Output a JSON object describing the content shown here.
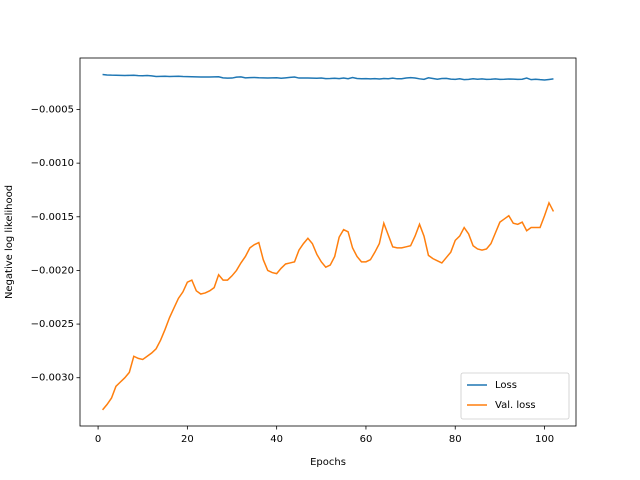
{
  "chart_data": {
    "type": "line",
    "xlabel": "Epochs",
    "ylabel": "Negative log likelihood",
    "x": [
      1,
      2,
      3,
      4,
      5,
      6,
      7,
      8,
      9,
      10,
      11,
      12,
      13,
      14,
      15,
      16,
      17,
      18,
      19,
      20,
      21,
      22,
      23,
      24,
      25,
      26,
      27,
      28,
      29,
      30,
      31,
      32,
      33,
      34,
      35,
      36,
      37,
      38,
      39,
      40,
      41,
      42,
      43,
      44,
      45,
      46,
      47,
      48,
      49,
      50,
      51,
      52,
      53,
      54,
      55,
      56,
      57,
      58,
      59,
      60,
      61,
      62,
      63,
      64,
      65,
      66,
      67,
      68,
      69,
      70,
      71,
      72,
      73,
      74,
      75,
      76,
      77,
      78,
      79,
      80,
      81,
      82,
      83,
      84,
      85,
      86,
      87,
      88,
      89,
      90,
      91,
      92,
      93,
      94,
      95,
      96,
      97,
      98,
      99,
      100,
      101,
      102
    ],
    "series": [
      {
        "name": "Loss",
        "color": "#1f77b4",
        "values": [
          -0.000174,
          -0.000178,
          -0.00018,
          -0.000181,
          -0.000182,
          -0.000183,
          -0.000182,
          -0.000181,
          -0.000184,
          -0.000186,
          -0.000183,
          -0.000187,
          -0.000192,
          -0.000191,
          -0.00019,
          -0.000192,
          -0.000191,
          -0.00019,
          -0.000193,
          -0.000194,
          -0.000195,
          -0.000196,
          -0.000197,
          -0.000197,
          -0.000197,
          -0.000196,
          -0.000195,
          -0.000205,
          -0.000208,
          -0.000207,
          -0.000198,
          -0.000196,
          -0.000205,
          -0.000203,
          -0.000202,
          -0.000204,
          -0.000205,
          -0.000206,
          -0.000205,
          -0.000204,
          -0.000209,
          -0.000205,
          -0.000201,
          -0.000197,
          -0.000207,
          -0.000206,
          -0.000207,
          -0.000208,
          -0.000209,
          -0.000207,
          -0.000212,
          -0.000211,
          -0.000209,
          -0.000212,
          -0.000207,
          -0.000213,
          -0.000202,
          -0.000211,
          -0.000214,
          -0.000212,
          -0.000215,
          -0.000212,
          -0.000216,
          -0.000211,
          -0.000213,
          -0.000208,
          -0.000214,
          -0.000213,
          -0.000206,
          -0.000203,
          -0.000206,
          -0.000214,
          -0.000219,
          -0.000204,
          -0.000211,
          -0.000218,
          -0.000211,
          -0.00021,
          -0.000217,
          -0.000219,
          -0.000213,
          -0.000221,
          -0.000219,
          -0.000213,
          -0.000218,
          -0.000215,
          -0.000219,
          -0.000218,
          -0.000215,
          -0.000219,
          -0.000218,
          -0.000216,
          -0.000217,
          -0.000219,
          -0.000218,
          -0.000207,
          -0.000222,
          -0.000218,
          -0.000222,
          -0.000225,
          -0.00022,
          -0.000215
        ]
      },
      {
        "name": "Val. loss",
        "color": "#ff7f0e",
        "values": [
          -0.0033,
          -0.00325,
          -0.00319,
          -0.00308,
          -0.00304,
          -0.003,
          -0.00295,
          -0.0028,
          -0.00282,
          -0.00283,
          -0.0028,
          -0.00277,
          -0.00273,
          -0.00265,
          -0.00255,
          -0.00244,
          -0.00235,
          -0.00226,
          -0.0022,
          -0.00211,
          -0.00209,
          -0.00219,
          -0.00222,
          -0.00221,
          -0.00219,
          -0.00216,
          -0.00204,
          -0.00209,
          -0.00209,
          -0.00205,
          -0.002,
          -0.00193,
          -0.00187,
          -0.00179,
          -0.00176,
          -0.00174,
          -0.0019,
          -0.002,
          -0.00202,
          -0.00203,
          -0.00198,
          -0.00194,
          -0.00193,
          -0.00192,
          -0.00181,
          -0.00175,
          -0.0017,
          -0.00175,
          -0.00185,
          -0.00192,
          -0.00197,
          -0.00195,
          -0.00187,
          -0.00169,
          -0.00162,
          -0.00164,
          -0.00179,
          -0.00187,
          -0.00192,
          -0.00192,
          -0.0019,
          -0.00183,
          -0.00175,
          -0.00156,
          -0.00167,
          -0.00178,
          -0.00179,
          -0.00179,
          -0.00178,
          -0.00177,
          -0.00168,
          -0.00157,
          -0.00168,
          -0.00186,
          -0.00189,
          -0.00191,
          -0.00193,
          -0.00188,
          -0.00183,
          -0.00172,
          -0.00168,
          -0.0016,
          -0.00166,
          -0.00177,
          -0.0018,
          -0.00181,
          -0.0018,
          -0.00175,
          -0.00165,
          -0.00155,
          -0.00152,
          -0.00149,
          -0.00156,
          -0.00157,
          -0.00155,
          -0.00163,
          -0.0016,
          -0.0016,
          -0.0016,
          -0.00149,
          -0.00137,
          -0.00145
        ]
      }
    ],
    "xlim": [
      -4.05,
      107.05
    ],
    "xticks": [
      0,
      20,
      40,
      60,
      80,
      100
    ],
    "ylim": [
      -0.00345,
      -2e-05
    ],
    "yticks": [
      {
        "value": -0.003,
        "label": "−0.0030"
      },
      {
        "value": -0.0025,
        "label": "−0.0025"
      },
      {
        "value": -0.002,
        "label": "−0.0020"
      },
      {
        "value": -0.0015,
        "label": "−0.0015"
      },
      {
        "value": -0.001,
        "label": "−0.0010"
      },
      {
        "value": -0.0005,
        "label": "−0.0005"
      }
    ],
    "legend_loc": "lower right"
  }
}
